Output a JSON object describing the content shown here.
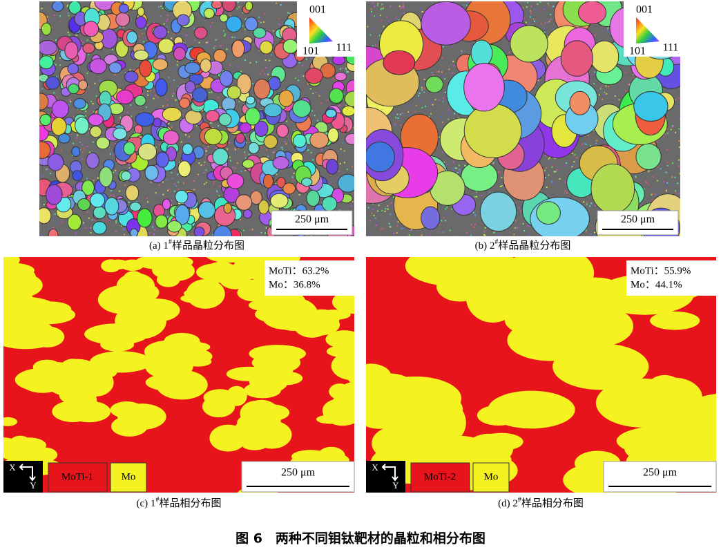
{
  "panels": [
    {
      "caption": {
        "label": "(a) 1",
        "sup": "#",
        "text": "样品晶粒分布图"
      },
      "ipf": {
        "top": "001",
        "left": "101",
        "right": "111"
      },
      "scale_bar": "250 μm"
    },
    {
      "caption": {
        "label": "(b) 2",
        "sup": "#",
        "text": "样品晶粒分布图"
      },
      "ipf": {
        "top": "001",
        "left": "101",
        "right": "111"
      },
      "scale_bar": "250 μm"
    },
    {
      "caption": {
        "label": "(c) 1",
        "sup": "#",
        "text": "样品相分布图"
      },
      "fractions": [
        "MoTi：63.2%",
        "Mo：36.8%"
      ],
      "axes": {
        "x": "X",
        "y": "Y"
      },
      "legend": [
        "MoTi-1",
        "Mo"
      ],
      "scale_bar": "250 μm"
    },
    {
      "caption": {
        "label": "(d) 2",
        "sup": "#",
        "text": "样品相分布图"
      },
      "fractions": [
        "MoTi：55.9%",
        "Mo：44.1%"
      ],
      "axes": {
        "x": "X",
        "y": "Y"
      },
      "legend": [
        "MoTi-2",
        "Mo"
      ],
      "scale_bar": "250 μm"
    }
  ],
  "figure_caption": "图 6　两种不同钼钛靶材的晶粒和相分布图"
}
